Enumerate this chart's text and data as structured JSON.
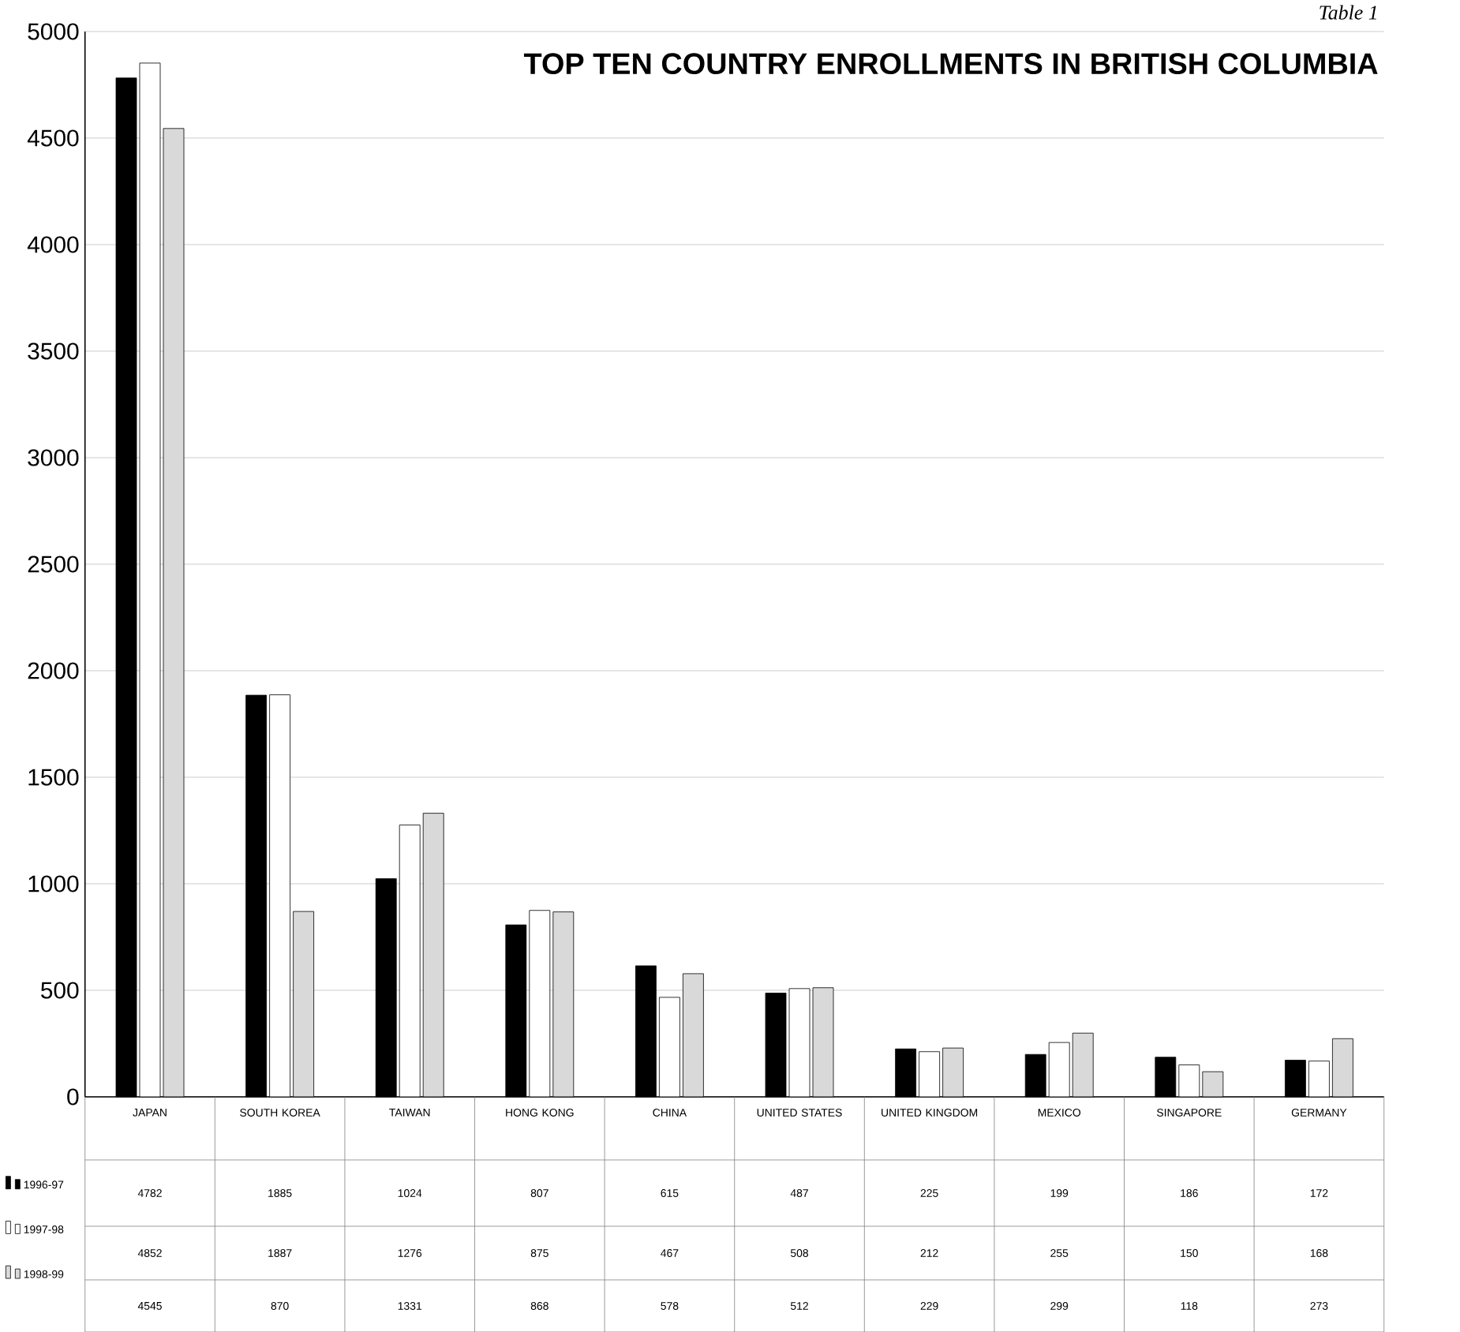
{
  "chart_data": {
    "type": "bar",
    "title": "TOP TEN COUNTRY ENROLLMENTS IN BRITISH COLUMBIA",
    "annotations": [
      "Table 1"
    ],
    "categories": [
      "JAPAN",
      "SOUTH KOREA",
      "TAIWAN",
      "HONG KONG",
      "CHINA",
      "UNITED STATES",
      "UNITED KINGDOM",
      "MEXICO",
      "SINGAPORE",
      "GERMANY"
    ],
    "series": [
      {
        "name": "1996-97",
        "color": "#000000",
        "values": [
          4782,
          1885,
          1024,
          807,
          615,
          487,
          225,
          199,
          186,
          172
        ]
      },
      {
        "name": "1997-98",
        "color": "#ffffff",
        "values": [
          4852,
          1887,
          1276,
          875,
          467,
          508,
          212,
          255,
          150,
          168
        ]
      },
      {
        "name": "1998-99",
        "color": "#d9d9d9",
        "values": [
          4545,
          870,
          1331,
          868,
          578,
          512,
          229,
          299,
          118,
          273
        ]
      }
    ],
    "ylim": [
      0,
      5000
    ],
    "yticks": [
      0,
      500,
      1000,
      1500,
      2000,
      2500,
      3000,
      3500,
      4000,
      4500,
      5000
    ],
    "grid": "y",
    "legend": "bottom left",
    "data_labels": true
  }
}
